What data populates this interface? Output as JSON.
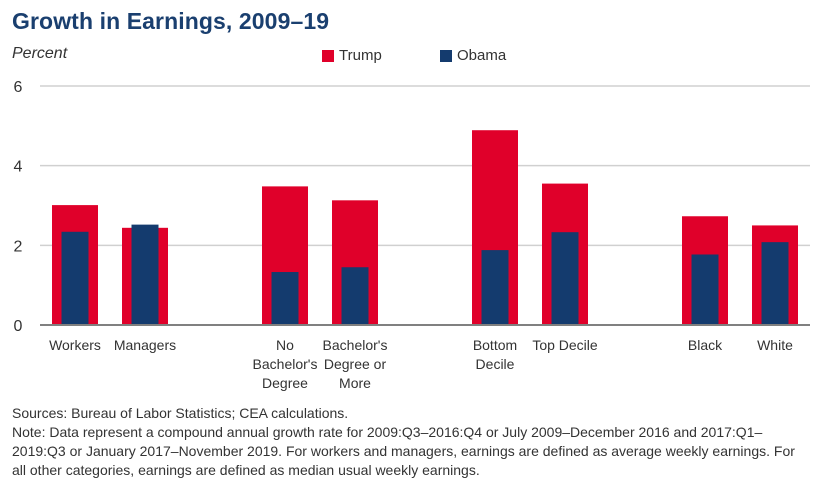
{
  "chart_data": {
    "type": "bar",
    "title": "Growth in Earnings, 2009–19",
    "ylabel": "Percent",
    "xlabel": "",
    "ylim": [
      0,
      6
    ],
    "yticks": [
      0,
      2,
      4,
      6
    ],
    "grid": true,
    "legend_position": "top-center",
    "categories": [
      "Workers",
      "Managers",
      "No Bachelor's Degree",
      "Bachelor's Degree or More",
      "Bottom Decile",
      "Top Decile",
      "Black",
      "White"
    ],
    "category_label_lines": [
      [
        "Workers"
      ],
      [
        "Managers"
      ],
      [
        "No",
        "Bachelor's",
        "Degree"
      ],
      [
        "Bachelor's",
        "Degree or",
        "More"
      ],
      [
        "Bottom",
        "Decile"
      ],
      [
        "Top Decile"
      ],
      [
        "Black"
      ],
      [
        "White"
      ]
    ],
    "category_slots": [
      0,
      1,
      3,
      4,
      6,
      7,
      9,
      10
    ],
    "series": [
      {
        "name": "Trump",
        "color": "#e0002a",
        "values": [
          3.01,
          2.44,
          3.48,
          3.13,
          4.89,
          3.55,
          2.73,
          2.5
        ]
      },
      {
        "name": "Obama",
        "color": "#143b6e",
        "values": [
          2.34,
          2.52,
          1.33,
          1.45,
          1.88,
          2.33,
          1.77,
          2.08
        ]
      }
    ]
  },
  "footer": {
    "sources": "Sources: Bureau of Labor Statistics; CEA calculations.",
    "note": "Note: Data represent a compound annual growth rate for 2009:Q3–2016:Q4 or July 2009–December 2016 and 2017:Q1–2019:Q3 or January 2017–November 2019. For workers and managers, earnings are defined as average weekly earnings. For all other categories, earnings are defined as median usual weekly earnings."
  }
}
